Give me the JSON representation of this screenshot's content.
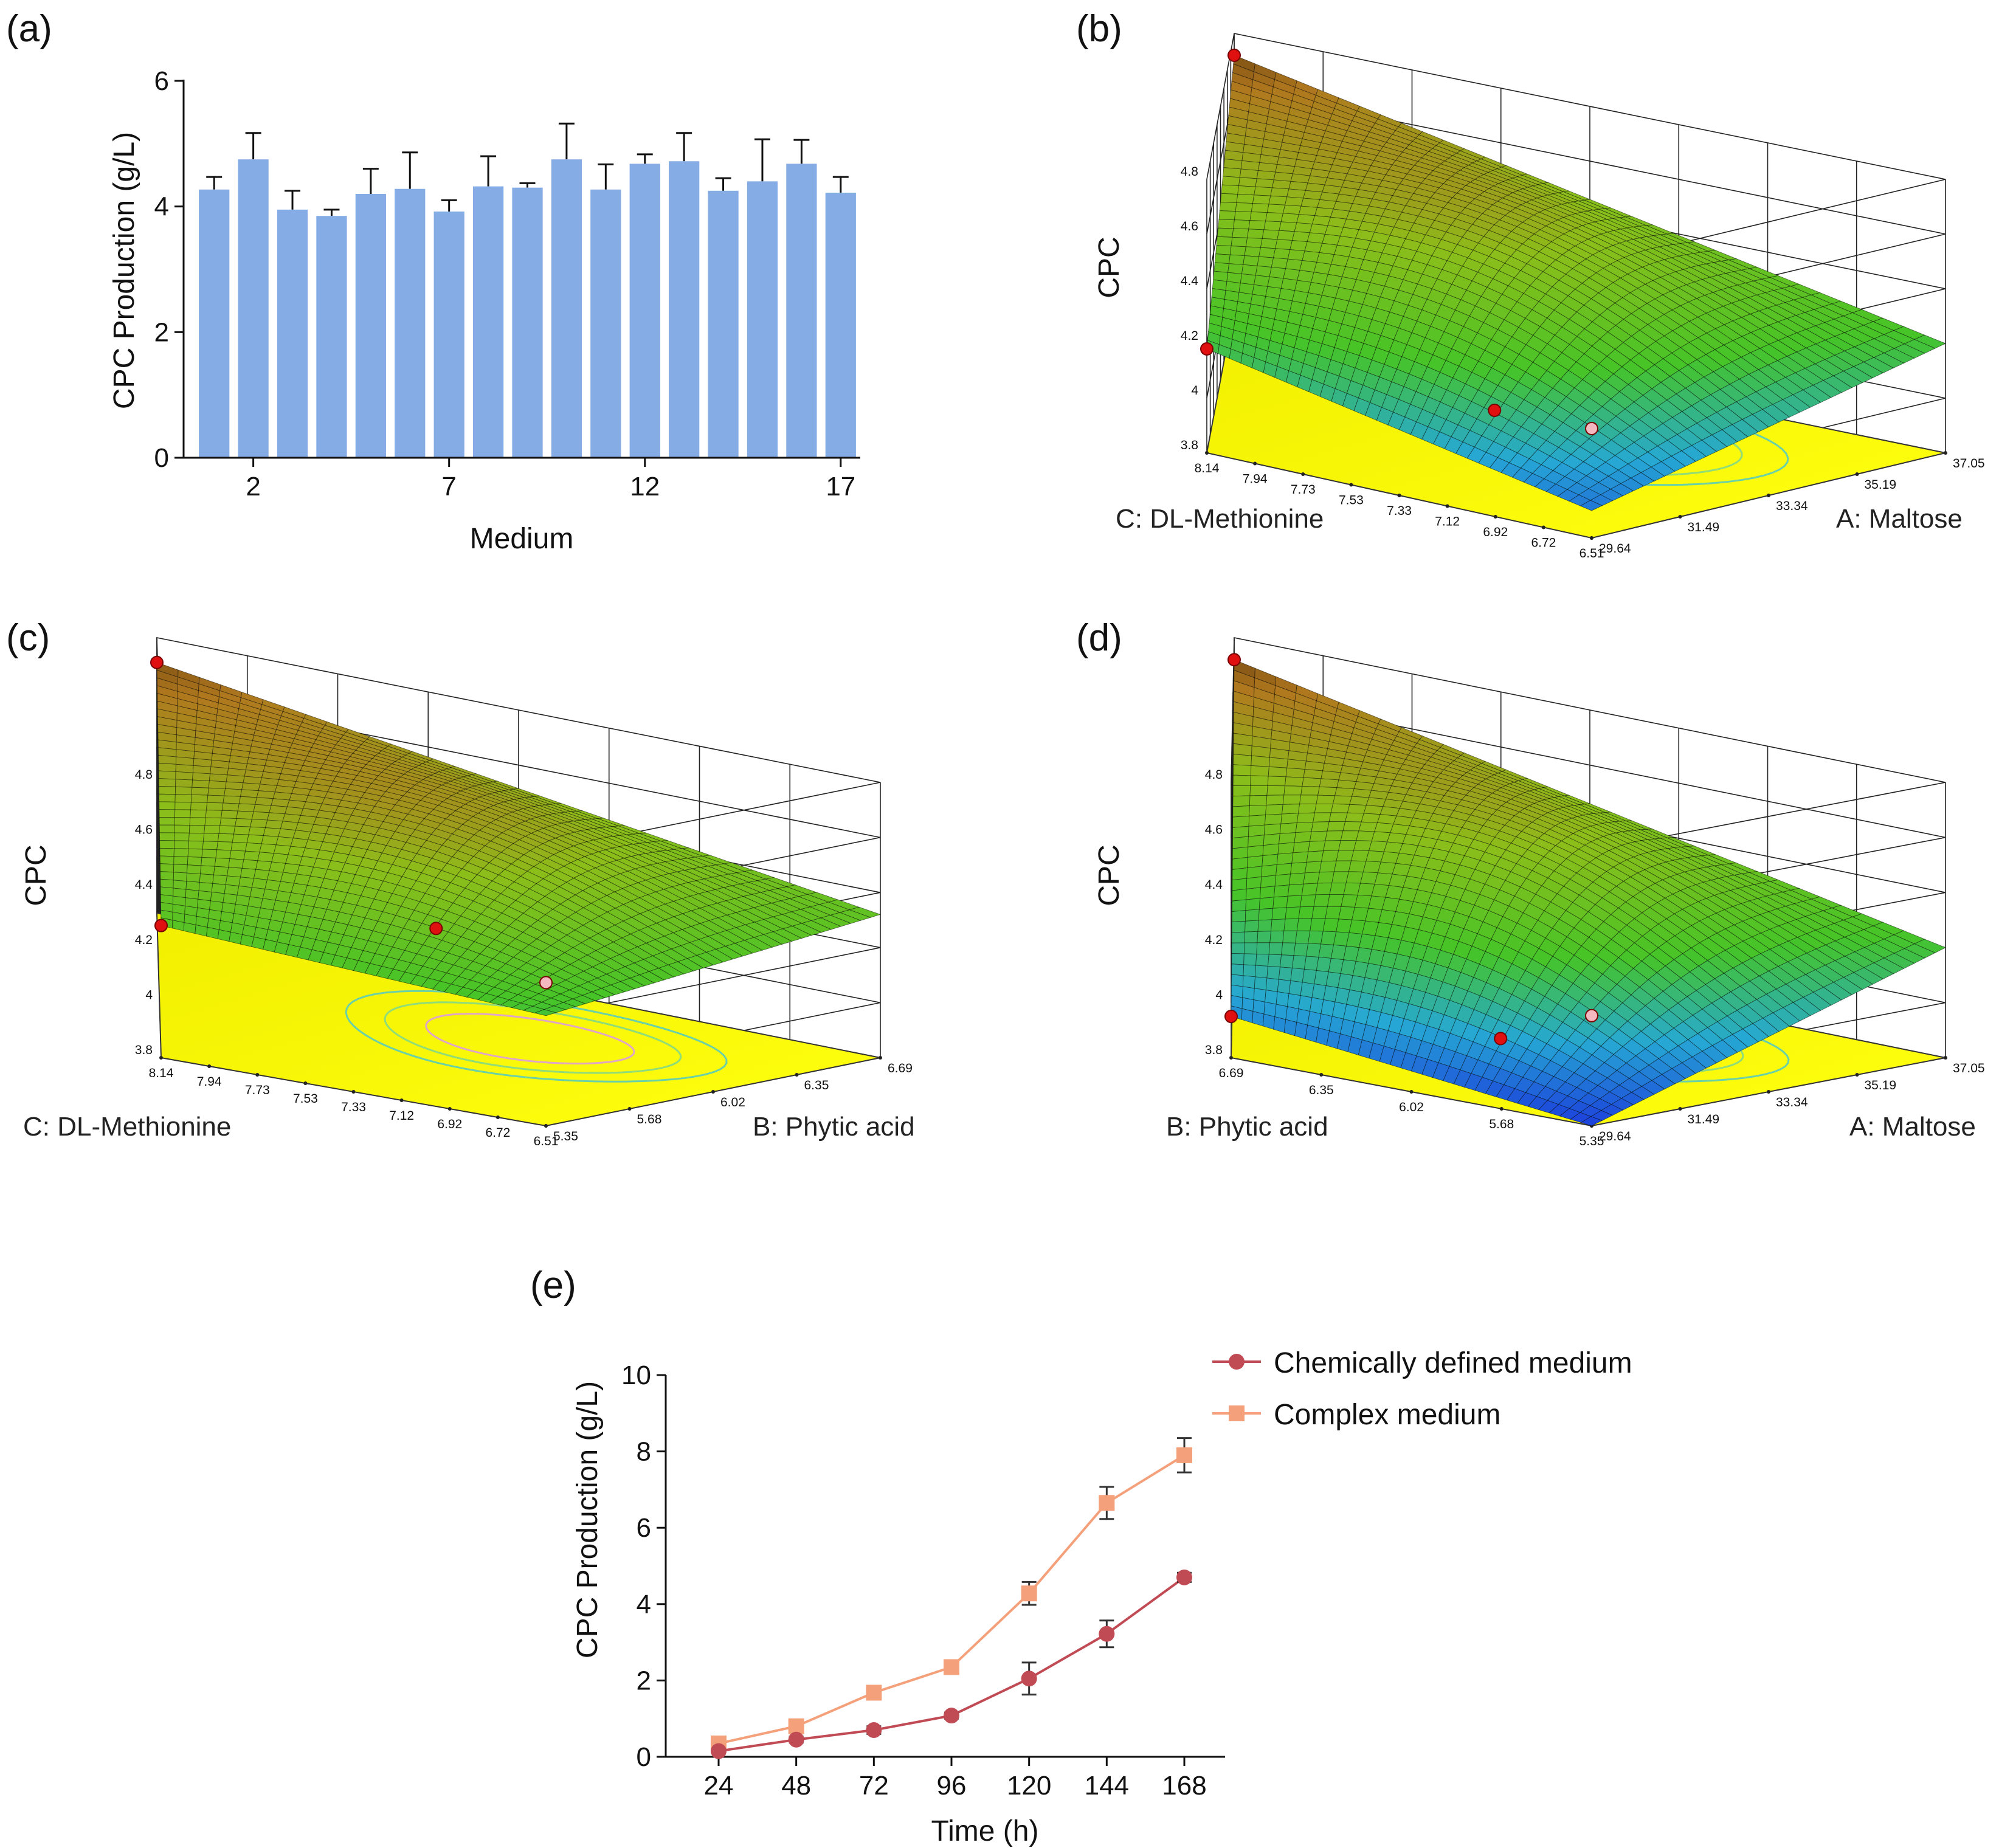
{
  "panels": {
    "a": {
      "label": "(a)",
      "chart_data": {
        "type": "bar",
        "xlabel": "Medium",
        "ylabel": "CPC Production (g/L)",
        "ylim": [
          0,
          6
        ],
        "yticks": [
          0,
          2,
          4,
          6
        ],
        "xticks": [
          2,
          7,
          12,
          17
        ],
        "categories": [
          1,
          2,
          3,
          4,
          5,
          6,
          7,
          8,
          9,
          10,
          11,
          12,
          13,
          14,
          15,
          16,
          17
        ],
        "values": [
          4.27,
          4.75,
          3.95,
          3.85,
          4.2,
          4.28,
          3.92,
          4.32,
          4.3,
          4.75,
          4.27,
          4.68,
          4.72,
          4.25,
          4.4,
          4.68,
          4.22
        ],
        "errors": [
          0.2,
          0.42,
          0.3,
          0.1,
          0.4,
          0.58,
          0.18,
          0.48,
          0.07,
          0.57,
          0.4,
          0.15,
          0.45,
          0.2,
          0.67,
          0.38,
          0.25
        ],
        "color": "#86ACE6"
      }
    },
    "b": {
      "label": "(b)",
      "chart_data": {
        "type": "surface3d",
        "zlabel": "CPC",
        "zlim": [
          3.8,
          4.8
        ],
        "zticks": [
          "3.8",
          "4",
          "4.2",
          "4.4",
          "4.6",
          "4.8"
        ],
        "left_axis": {
          "name": "C: DL-Methionine",
          "ticks": [
            "8.14",
            "7.94",
            "7.73",
            "7.53",
            "7.33",
            "7.12",
            "6.92",
            "6.72",
            "6.51"
          ]
        },
        "right_axis": {
          "name": "A: Maltose",
          "ticks": [
            "29.64",
            "31.49",
            "33.34",
            "35.19",
            "37.05"
          ]
        },
        "corners": {
          "far": 4.72,
          "left": 4.18,
          "right": 4.2,
          "front": 3.9
        },
        "design_points": [
          4.72,
          4.18,
          4.2,
          3.9
        ]
      }
    },
    "c": {
      "label": "(c)",
      "chart_data": {
        "type": "surface3d",
        "zlabel": "CPC",
        "zlim": [
          3.8,
          4.8
        ],
        "zticks": [
          "3.8",
          "4",
          "4.2",
          "4.4",
          "4.6",
          "4.8"
        ],
        "left_axis": {
          "name": "C: DL-Methionine",
          "ticks": [
            "8.14",
            "7.94",
            "7.73",
            "7.53",
            "7.33",
            "7.12",
            "6.92",
            "6.72",
            "6.51"
          ]
        },
        "right_axis": {
          "name": "B: Phytic acid",
          "ticks": [
            "5.35",
            "5.68",
            "6.02",
            "6.35",
            "6.69"
          ]
        },
        "corners": {
          "far": 4.71,
          "left": 4.28,
          "right": 4.32,
          "front": 4.2
        },
        "design_points": [
          4.71,
          4.28,
          4.32,
          4.2
        ]
      }
    },
    "d": {
      "label": "(d)",
      "chart_data": {
        "type": "surface3d",
        "zlabel": "CPC",
        "zlim": [
          3.8,
          4.8
        ],
        "zticks": [
          "3.8",
          "4",
          "4.2",
          "4.4",
          "4.6",
          "4.8"
        ],
        "left_axis": {
          "name": "B: Phytic acid",
          "ticks": [
            "6.69",
            "6.35",
            "6.02",
            "5.68",
            "5.35"
          ]
        },
        "right_axis": {
          "name": "A: Maltose",
          "ticks": [
            "29.64",
            "31.49",
            "33.34",
            "35.19",
            "37.05"
          ]
        },
        "corners": {
          "far": 4.72,
          "left": 3.95,
          "right": 4.2,
          "front": 3.8
        },
        "design_points": [
          4.72,
          3.95,
          4.2,
          3.8
        ]
      }
    },
    "e": {
      "label": "(e)",
      "chart_data": {
        "type": "line",
        "xlabel": "Time (h)",
        "ylabel": "CPC Production (g/L)",
        "ylim": [
          0,
          10
        ],
        "yticks": [
          0,
          2,
          4,
          6,
          8,
          10
        ],
        "x": [
          24,
          48,
          72,
          96,
          120,
          144,
          168
        ],
        "series": [
          {
            "name": "Chemically defined medium",
            "values": [
              0.15,
              0.45,
              0.7,
              1.08,
              2.05,
              3.22,
              4.7
            ],
            "errors": [
              0.05,
              0.08,
              0.1,
              0.08,
              0.42,
              0.35,
              0.12
            ],
            "color": "#C14B55",
            "marker": "circle"
          },
          {
            "name": "Complex medium",
            "values": [
              0.35,
              0.8,
              1.68,
              2.35,
              4.28,
              6.65,
              7.9
            ],
            "errors": [
              0.05,
              0.08,
              0.1,
              0.15,
              0.3,
              0.42,
              0.45
            ],
            "color": "#F4A07A",
            "marker": "square"
          }
        ]
      }
    }
  }
}
